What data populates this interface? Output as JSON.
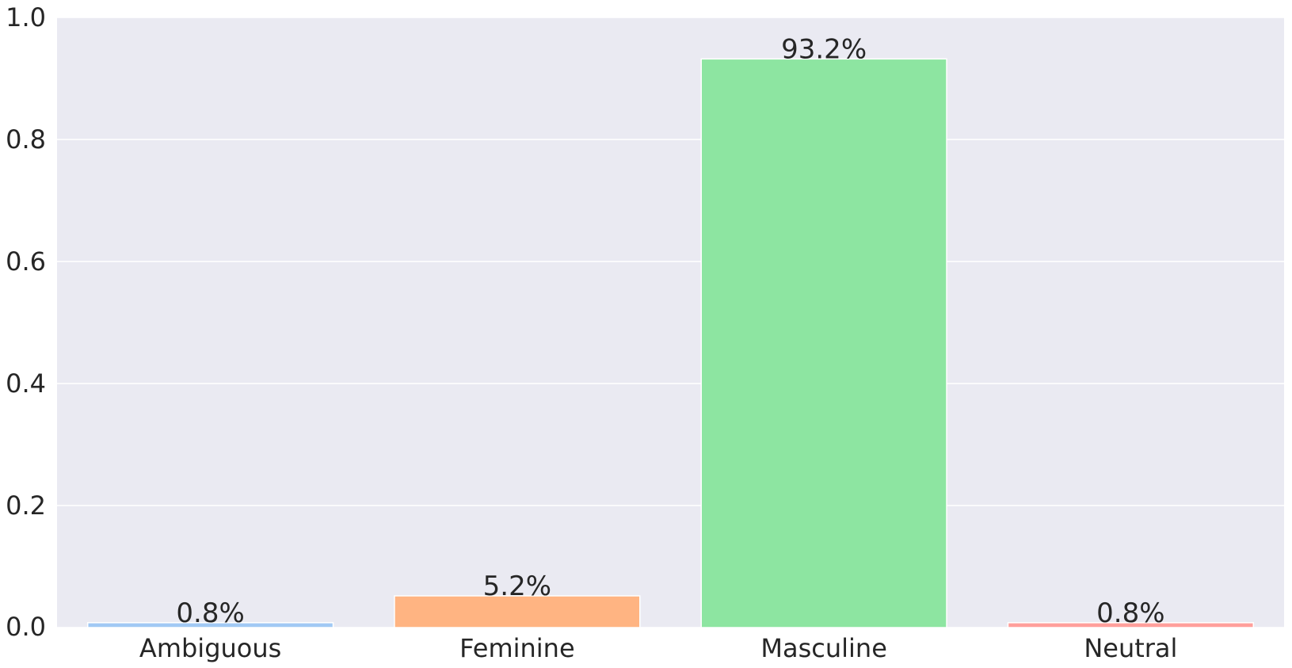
{
  "chart_data": {
    "type": "bar",
    "title": "",
    "xlabel": "",
    "ylabel": "",
    "categories": [
      "Ambiguous",
      "Feminine",
      "Masculine",
      "Neutral"
    ],
    "values": [
      0.008,
      0.052,
      0.932,
      0.008
    ],
    "data_labels": [
      "0.8%",
      "5.2%",
      "93.2%",
      "0.8%"
    ],
    "colors": [
      "#a1c9f4",
      "#ffb482",
      "#8de5a1",
      "#ff9f9b"
    ],
    "ylim": [
      0,
      1.0
    ],
    "yticks": [
      0.0,
      0.2,
      0.4,
      0.6,
      0.8,
      1.0
    ],
    "ytick_labels": [
      "0.0",
      "0.2",
      "0.4",
      "0.6",
      "0.8",
      "1.0"
    ],
    "grid": true,
    "background": "#eaeaf2",
    "grid_color": "#ffffff"
  }
}
